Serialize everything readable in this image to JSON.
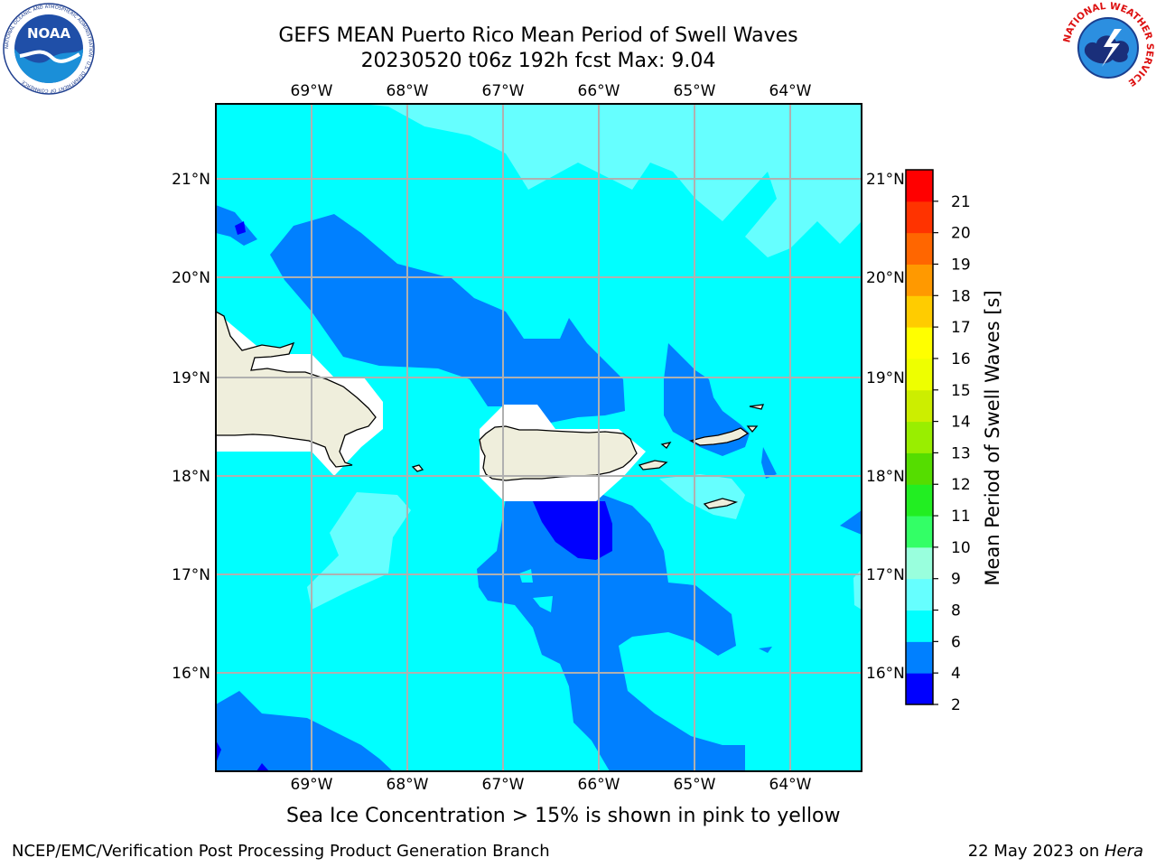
{
  "title": {
    "line1": "GEFS MEAN Puerto Rico Mean Period of Swell Waves",
    "line2": "20230520 t06z 192h fcst   Max: 9.04"
  },
  "map": {
    "lon_labels": [
      "69°W",
      "68°W",
      "67°W",
      "66°W",
      "65°W",
      "64°W"
    ],
    "lat_labels": [
      "21°N",
      "20°N",
      "19°N",
      "18°N",
      "17°N",
      "16°N"
    ],
    "colors": {
      "land": "#efeedc",
      "c2_4": "#0000ff",
      "c4_6": "#0080ff",
      "c6_8": "#00ffff",
      "c8_9": "#66ffff",
      "grid": "#b0b0b0"
    }
  },
  "colorbar": {
    "label": "Mean Period of Swell Waves [s]",
    "ticks": [
      "2",
      "4",
      "6",
      "8",
      "9",
      "10",
      "11",
      "12",
      "13",
      "14",
      "15",
      "16",
      "17",
      "18",
      "19",
      "20",
      "21"
    ],
    "colors": [
      "#0000ff",
      "#0080ff",
      "#00ffff",
      "#66ffff",
      "#99ffdd",
      "#33ff66",
      "#22ee22",
      "#55dd00",
      "#99ee00",
      "#ccee00",
      "#eeff00",
      "#ffff00",
      "#ffcc00",
      "#ff9900",
      "#ff6600",
      "#ff3300",
      "#ff0000"
    ]
  },
  "note": "Sea Ice Concentration > 15% is shown in pink to yellow",
  "footer": {
    "left": "NCEP/EMC/Verification Post Processing Product Generation Branch",
    "right_date": "22 May 2023 on ",
    "right_host": "Hera"
  },
  "logos": {
    "noaa": "NOAA",
    "noaa_ring": "NATIONAL OCEANIC AND ATMOSPHERIC ADMINISTRATION · U.S. DEPARTMENT OF COMMERCE",
    "nws_ring": "NATIONAL WEATHER SERVICE"
  }
}
